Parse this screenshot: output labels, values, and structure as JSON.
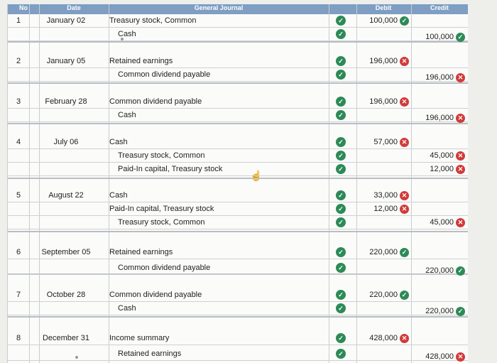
{
  "header": {
    "no": "No",
    "date": "Date",
    "journal": "General Journal",
    "debit": "Debit",
    "credit": "Credit"
  },
  "entries": [
    {
      "no": "1",
      "date": "January 02",
      "lines": [
        {
          "account": "Treasury stock, Common",
          "indent": false,
          "debit": "100,000",
          "debit_ok": true,
          "credit": "",
          "credit_ok": null
        },
        {
          "account": "Cash",
          "indent": true,
          "debit": "",
          "debit_ok": null,
          "credit": "100,000",
          "credit_ok": true
        }
      ]
    },
    {
      "no": "2",
      "date": "January 05",
      "lines": [
        {
          "account": "Retained earnings",
          "indent": false,
          "debit": "196,000",
          "debit_ok": false,
          "credit": "",
          "credit_ok": null
        },
        {
          "account": "Common dividend payable",
          "indent": true,
          "debit": "",
          "debit_ok": null,
          "credit": "196,000",
          "credit_ok": false
        }
      ]
    },
    {
      "no": "3",
      "date": "February 28",
      "lines": [
        {
          "account": "Common dividend payable",
          "indent": false,
          "debit": "196,000",
          "debit_ok": false,
          "credit": "",
          "credit_ok": null
        },
        {
          "account": "Cash",
          "indent": true,
          "debit": "",
          "debit_ok": null,
          "credit": "196,000",
          "credit_ok": false
        }
      ]
    },
    {
      "no": "4",
      "date": "July 06",
      "lines": [
        {
          "account": "Cash",
          "indent": false,
          "debit": "57,000",
          "debit_ok": false,
          "credit": "",
          "credit_ok": null
        },
        {
          "account": "Treasury stock, Common",
          "indent": true,
          "debit": "",
          "debit_ok": null,
          "credit": "45,000",
          "credit_ok": false
        },
        {
          "account": "Paid-In capital, Treasury stock",
          "indent": true,
          "debit": "",
          "debit_ok": null,
          "credit": "12,000",
          "credit_ok": false
        }
      ]
    },
    {
      "no": "5",
      "date": "August 22",
      "lines": [
        {
          "account": "Cash",
          "indent": false,
          "debit": "33,000",
          "debit_ok": false,
          "credit": "",
          "credit_ok": null
        },
        {
          "account": "Paid-In capital, Treasury stock",
          "indent": false,
          "debit": "12,000",
          "debit_ok": false,
          "credit": "",
          "credit_ok": null
        },
        {
          "account": "Treasury stock, Common",
          "indent": true,
          "debit": "",
          "debit_ok": null,
          "credit": "45,000",
          "credit_ok": false
        }
      ]
    },
    {
      "no": "6",
      "date": "September 05",
      "lines": [
        {
          "account": "Retained earnings",
          "indent": false,
          "debit": "220,000",
          "debit_ok": true,
          "credit": "",
          "credit_ok": null
        },
        {
          "account": "Common dividend payable",
          "indent": true,
          "debit": "",
          "debit_ok": null,
          "credit": "220,000",
          "credit_ok": true
        }
      ]
    },
    {
      "no": "7",
      "date": "October 28",
      "lines": [
        {
          "account": "Common dividend payable",
          "indent": false,
          "debit": "220,000",
          "debit_ok": true,
          "credit": "",
          "credit_ok": null
        },
        {
          "account": "Cash",
          "indent": true,
          "debit": "",
          "debit_ok": null,
          "credit": "220,000",
          "credit_ok": true
        }
      ]
    },
    {
      "no": "8",
      "date": "December 31",
      "lines": [
        {
          "account": "Income summary",
          "indent": false,
          "debit": "428,000",
          "debit_ok": false,
          "credit": "",
          "credit_ok": null
        },
        {
          "account": "Retained earnings",
          "indent": true,
          "debit": "",
          "debit_ok": null,
          "credit": "428,000",
          "credit_ok": false
        }
      ]
    }
  ],
  "colors": {
    "header": "#7e9ec3",
    "correct": "#2d8a57",
    "incorrect": "#d23a3a"
  }
}
